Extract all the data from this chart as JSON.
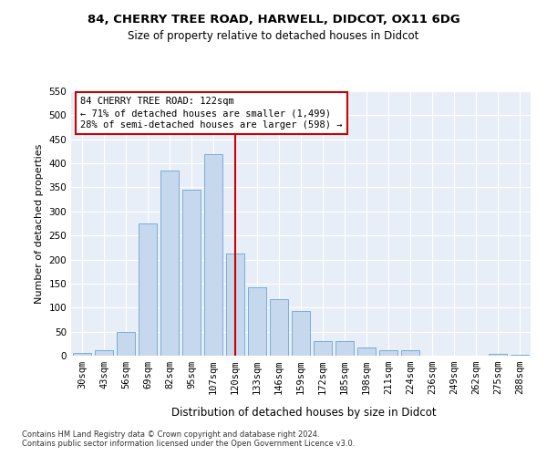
{
  "title1": "84, CHERRY TREE ROAD, HARWELL, DIDCOT, OX11 6DG",
  "title2": "Size of property relative to detached houses in Didcot",
  "xlabel": "Distribution of detached houses by size in Didcot",
  "ylabel": "Number of detached properties",
  "footer1": "Contains HM Land Registry data © Crown copyright and database right 2024.",
  "footer2": "Contains public sector information licensed under the Open Government Licence v3.0.",
  "categories": [
    "30sqm",
    "43sqm",
    "56sqm",
    "69sqm",
    "82sqm",
    "95sqm",
    "107sqm",
    "120sqm",
    "133sqm",
    "146sqm",
    "159sqm",
    "172sqm",
    "185sqm",
    "198sqm",
    "211sqm",
    "224sqm",
    "236sqm",
    "249sqm",
    "262sqm",
    "275sqm",
    "288sqm"
  ],
  "values": [
    5,
    12,
    50,
    275,
    385,
    345,
    420,
    212,
    143,
    117,
    92,
    30,
    30,
    18,
    12,
    12,
    0,
    0,
    0,
    4,
    2
  ],
  "bar_color": "#c5d8ed",
  "bar_edge_color": "#7aadd4",
  "vline_index": 7,
  "annotation_line1": "84 CHERRY TREE ROAD: 122sqm",
  "annotation_line2": "← 71% of detached houses are smaller (1,499)",
  "annotation_line3": "28% of semi-detached houses are larger (598) →",
  "vline_color": "#cc0000",
  "annotation_box_facecolor": "#ffffff",
  "annotation_box_edgecolor": "#cc0000",
  "background_color": "#e8eef7",
  "ylim": [
    0,
    550
  ],
  "yticks": [
    0,
    50,
    100,
    150,
    200,
    250,
    300,
    350,
    400,
    450,
    500,
    550
  ],
  "title1_fontsize": 9.5,
  "title2_fontsize": 8.5,
  "ylabel_fontsize": 8,
  "xlabel_fontsize": 8.5,
  "tick_fontsize": 7.5,
  "annot_fontsize": 7.5,
  "footer_fontsize": 6.0
}
